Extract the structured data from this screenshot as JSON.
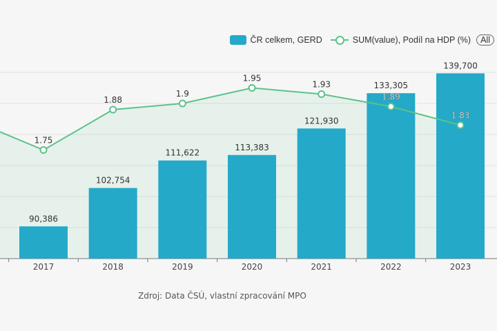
{
  "legend": {
    "bar_label": "ČR celkem, GERD",
    "line_label": "SUM(value), Podíl na HDP (%)",
    "all_button": "All"
  },
  "source": "Zdroj: Data ČSÚ, vlastní zpracování MPO",
  "chart_data": {
    "type": "bar+line",
    "categories": [
      "2017",
      "2018",
      "2019",
      "2020",
      "2021",
      "2022",
      "2023"
    ],
    "series": [
      {
        "name": "ČR celkem, GERD",
        "type": "bar",
        "values": [
          90386,
          102754,
          111622,
          113383,
          121930,
          133305,
          139700
        ],
        "labels": [
          "90,386",
          "102,754",
          "111,622",
          "113,383",
          "121,930",
          "133,305",
          "139,700"
        ],
        "color": "#24a9c9"
      },
      {
        "name": "SUM(value), Podíl na HDP (%)",
        "type": "line",
        "values": [
          1.75,
          1.88,
          1.9,
          1.95,
          1.93,
          1.89,
          1.83
        ],
        "labels": [
          "1.75",
          "1.88",
          "1.9",
          "1.95",
          "1.93",
          "1.89",
          "1.83"
        ],
        "color": "#5cc28a",
        "area": true
      }
    ],
    "y_left_range": [
      80000,
      140000
    ],
    "y_right_range": [
      1.4,
      2.0
    ],
    "grid": true,
    "legend_position": "top-right"
  }
}
